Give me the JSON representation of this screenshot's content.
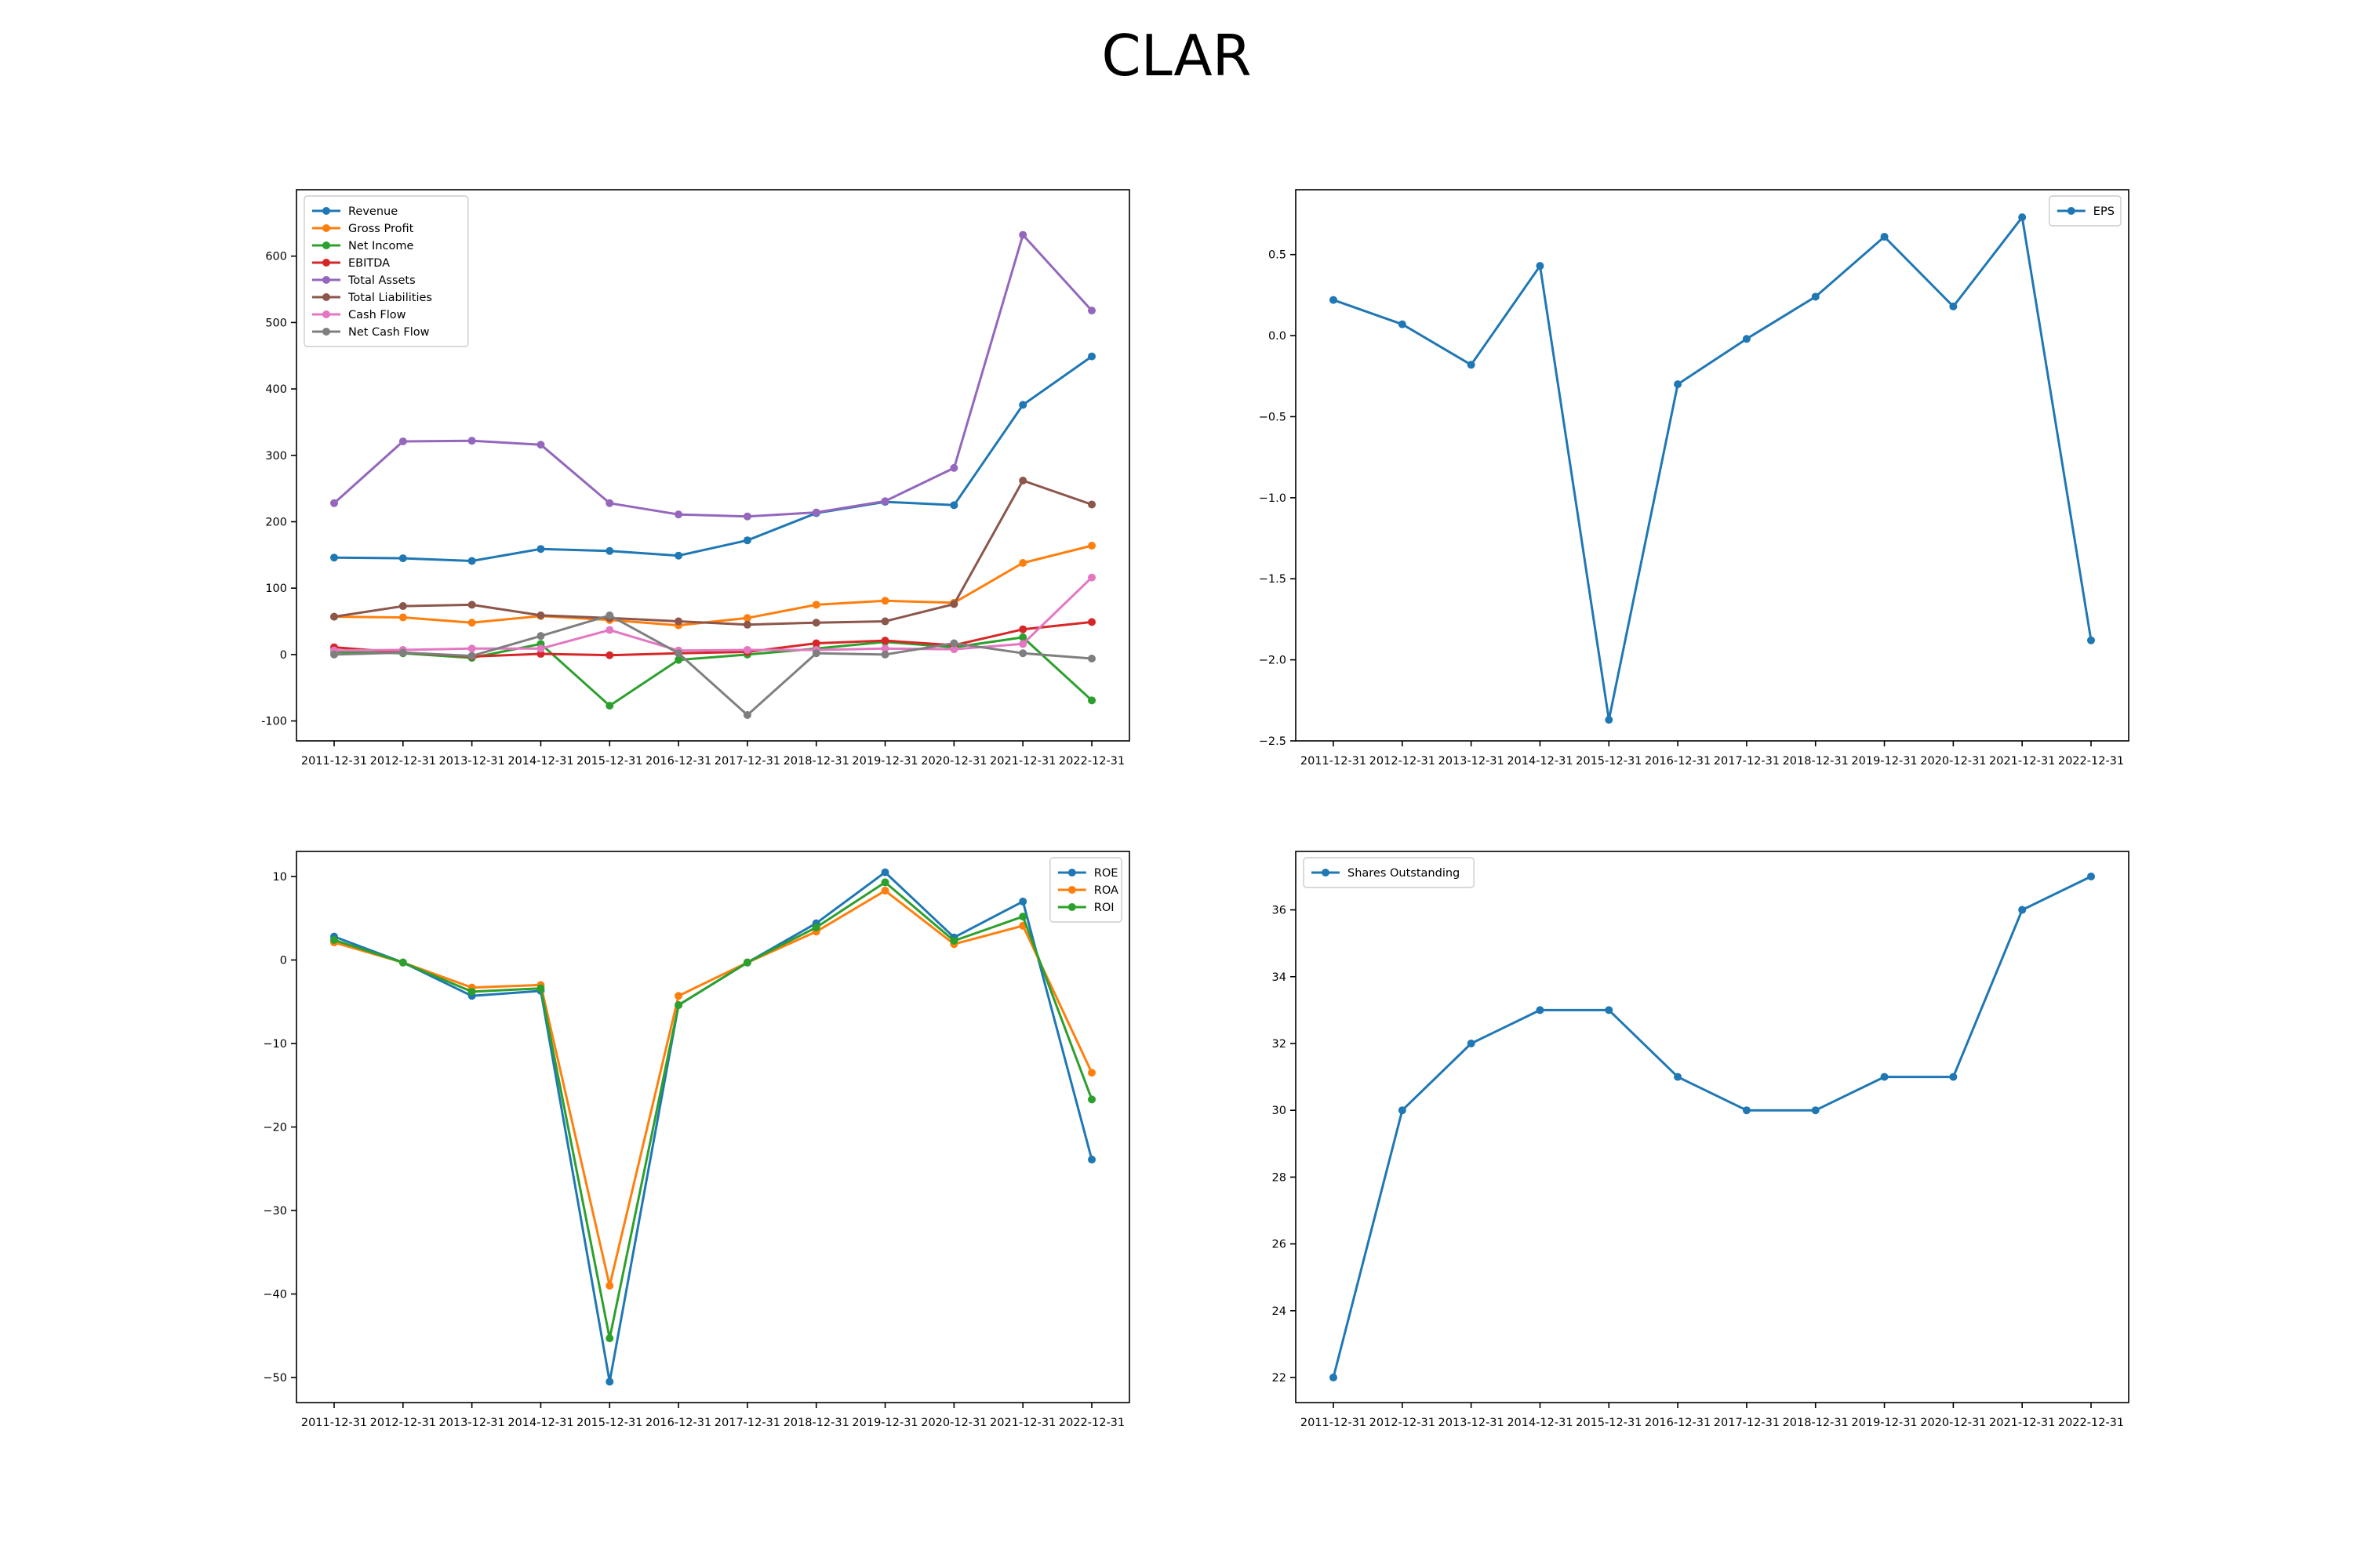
{
  "figure": {
    "title": "CLAR"
  },
  "chart_data": [
    {
      "type": "line",
      "title": "",
      "xlabel": "",
      "ylabel": "",
      "categories": [
        "2011-12-31",
        "2012-12-31",
        "2013-12-31",
        "2014-12-31",
        "2015-12-31",
        "2016-12-31",
        "2017-12-31",
        "2018-12-31",
        "2019-12-31",
        "2020-12-31",
        "2021-12-31",
        "2022-12-31"
      ],
      "ylim": [
        -130,
        700
      ],
      "yticks": [
        -100,
        0,
        100,
        200,
        300,
        400,
        500,
        600
      ],
      "legend": "top-left",
      "grid": false,
      "series": [
        {
          "name": "Revenue",
          "color": "#1f77b4",
          "values": [
            146,
            145,
            141,
            159,
            156,
            149,
            172,
            213,
            230,
            225,
            376,
            449
          ]
        },
        {
          "name": "Gross Profit",
          "color": "#ff7f0e",
          "values": [
            57,
            56,
            48,
            58,
            52,
            44,
            55,
            75,
            81,
            78,
            138,
            164
          ]
        },
        {
          "name": "Net Income",
          "color": "#2ca02c",
          "values": [
            4,
            2,
            -5,
            16,
            -77,
            -8,
            0,
            9,
            19,
            11,
            26,
            -69
          ]
        },
        {
          "name": "EBITDA",
          "color": "#d62728",
          "values": [
            11,
            3,
            -3,
            1,
            -1,
            2,
            4,
            17,
            21,
            14,
            38,
            49
          ]
        },
        {
          "name": "Total Assets",
          "color": "#9467bd",
          "values": [
            228,
            321,
            322,
            316,
            228,
            211,
            208,
            214,
            231,
            281,
            632,
            518
          ]
        },
        {
          "name": "Total Liabilities",
          "color": "#8c564b",
          "values": [
            57,
            73,
            75,
            59,
            55,
            50,
            45,
            48,
            50,
            76,
            262,
            226
          ]
        },
        {
          "name": "Cash Flow",
          "color": "#e377c2",
          "values": [
            6,
            7,
            9,
            9,
            37,
            6,
            7,
            7,
            9,
            8,
            16,
            116
          ]
        },
        {
          "name": "Net Cash Flow",
          "color": "#7f7f7f",
          "values": [
            0,
            3,
            -2,
            28,
            59,
            2,
            -91,
            2,
            0,
            17,
            2,
            -6
          ]
        }
      ]
    },
    {
      "type": "line",
      "title": "",
      "xlabel": "",
      "ylabel": "",
      "categories": [
        "2011-12-31",
        "2012-12-31",
        "2013-12-31",
        "2014-12-31",
        "2015-12-31",
        "2016-12-31",
        "2017-12-31",
        "2018-12-31",
        "2019-12-31",
        "2020-12-31",
        "2021-12-31",
        "2022-12-31"
      ],
      "ylim": [
        -2.5,
        0.9
      ],
      "yticks": [
        -2.5,
        -2.0,
        -1.5,
        -1.0,
        -0.5,
        0.0,
        0.5
      ],
      "ytick_labels": [
        "−2.5",
        "−2.0",
        "−1.5",
        "−1.0",
        "−0.5",
        "0.0",
        "0.5"
      ],
      "legend": "top-right",
      "grid": false,
      "series": [
        {
          "name": "EPS",
          "color": "#1f77b4",
          "values": [
            0.22,
            0.07,
            -0.18,
            0.43,
            -2.37,
            -0.3,
            -0.02,
            0.24,
            0.61,
            0.18,
            0.73,
            -1.88
          ]
        }
      ]
    },
    {
      "type": "line",
      "title": "",
      "xlabel": "",
      "ylabel": "",
      "categories": [
        "2011-12-31",
        "2012-12-31",
        "2013-12-31",
        "2014-12-31",
        "2015-12-31",
        "2016-12-31",
        "2017-12-31",
        "2018-12-31",
        "2019-12-31",
        "2020-12-31",
        "2021-12-31",
        "2022-12-31"
      ],
      "ylim": [
        -53,
        13
      ],
      "yticks": [
        -50,
        -40,
        -30,
        -20,
        -10,
        0,
        10
      ],
      "ytick_labels": [
        "−50",
        "−40",
        "−30",
        "−20",
        "−10",
        "0",
        "10"
      ],
      "legend": "top-right",
      "grid": false,
      "series": [
        {
          "name": "ROE",
          "color": "#1f77b4",
          "values": [
            2.8,
            -0.3,
            -4.3,
            -3.7,
            -50.5,
            -5.4,
            -0.3,
            4.4,
            10.5,
            2.7,
            7.0,
            -23.9
          ]
        },
        {
          "name": "ROA",
          "color": "#ff7f0e",
          "values": [
            2.1,
            -0.3,
            -3.3,
            -3.0,
            -39.0,
            -4.3,
            -0.3,
            3.4,
            8.3,
            1.9,
            4.1,
            -13.5
          ]
        },
        {
          "name": "ROI",
          "color": "#2ca02c",
          "values": [
            2.4,
            -0.3,
            -3.8,
            -3.4,
            -45.3,
            -5.4,
            -0.3,
            3.9,
            9.3,
            2.3,
            5.2,
            -16.7
          ]
        }
      ]
    },
    {
      "type": "line",
      "title": "",
      "xlabel": "",
      "ylabel": "",
      "categories": [
        "2011-12-31",
        "2012-12-31",
        "2013-12-31",
        "2014-12-31",
        "2015-12-31",
        "2016-12-31",
        "2017-12-31",
        "2018-12-31",
        "2019-12-31",
        "2020-12-31",
        "2021-12-31",
        "2022-12-31"
      ],
      "ylim": [
        21.25,
        37.75
      ],
      "yticks": [
        22,
        24,
        26,
        28,
        30,
        32,
        34,
        36
      ],
      "legend": "top-left",
      "grid": false,
      "series": [
        {
          "name": "Shares Outstanding",
          "color": "#1f77b4",
          "values": [
            22,
            30,
            32,
            33,
            33,
            31,
            30,
            30,
            31,
            31,
            36,
            37
          ]
        }
      ]
    }
  ]
}
